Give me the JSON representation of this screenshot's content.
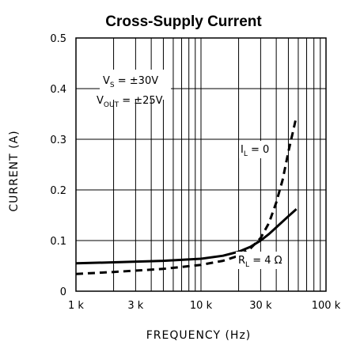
{
  "chart_data": {
    "type": "line",
    "title": "Cross-Supply Current",
    "xlabel": "FREQUENCY (Hz)",
    "ylabel": "CURRENT (A)",
    "xscale": "log",
    "xlim": [
      1000,
      100000
    ],
    "ylim": [
      0,
      0.5
    ],
    "grid": true,
    "x_ticks": [
      {
        "value": 1000,
        "label": "1 k"
      },
      {
        "value": 3000,
        "label": "3 k"
      },
      {
        "value": 10000,
        "label": "10 k"
      },
      {
        "value": 30000,
        "label": "30 k"
      },
      {
        "value": 100000,
        "label": "100 k"
      }
    ],
    "y_ticks": [
      {
        "value": 0,
        "label": "0"
      },
      {
        "value": 0.1,
        "label": "0.1"
      },
      {
        "value": 0.2,
        "label": "0.2"
      },
      {
        "value": 0.3,
        "label": "0.3"
      },
      {
        "value": 0.4,
        "label": "0.4"
      },
      {
        "value": 0.5,
        "label": "0.5"
      }
    ],
    "annotations": {
      "vs_main": "V",
      "vs_sub": "S",
      "vs_value": " = ±30V",
      "vout_main": "V",
      "vout_sub": "OUT",
      "vout_value": " = ±25V",
      "il_main": "I",
      "il_sub": "L",
      "il_value": " = 0",
      "rl_main": "R",
      "rl_sub": "L",
      "rl_value": " = 4 Ω"
    },
    "series": [
      {
        "id": "il0",
        "style": "dashed",
        "points": [
          [
            1000,
            0.034
          ],
          [
            2000,
            0.038
          ],
          [
            5000,
            0.044
          ],
          [
            10000,
            0.052
          ],
          [
            15000,
            0.06
          ],
          [
            20000,
            0.07
          ],
          [
            25000,
            0.085
          ],
          [
            30000,
            0.105
          ],
          [
            35000,
            0.135
          ],
          [
            40000,
            0.175
          ],
          [
            45000,
            0.22
          ],
          [
            50000,
            0.275
          ],
          [
            55000,
            0.32
          ],
          [
            58000,
            0.345
          ]
        ]
      },
      {
        "id": "rl4",
        "style": "solid",
        "points": [
          [
            1000,
            0.055
          ],
          [
            2000,
            0.057
          ],
          [
            5000,
            0.06
          ],
          [
            10000,
            0.064
          ],
          [
            15000,
            0.07
          ],
          [
            20000,
            0.078
          ],
          [
            25000,
            0.088
          ],
          [
            30000,
            0.1
          ],
          [
            35000,
            0.113
          ],
          [
            40000,
            0.126
          ],
          [
            50000,
            0.148
          ],
          [
            58000,
            0.162
          ]
        ]
      }
    ]
  }
}
